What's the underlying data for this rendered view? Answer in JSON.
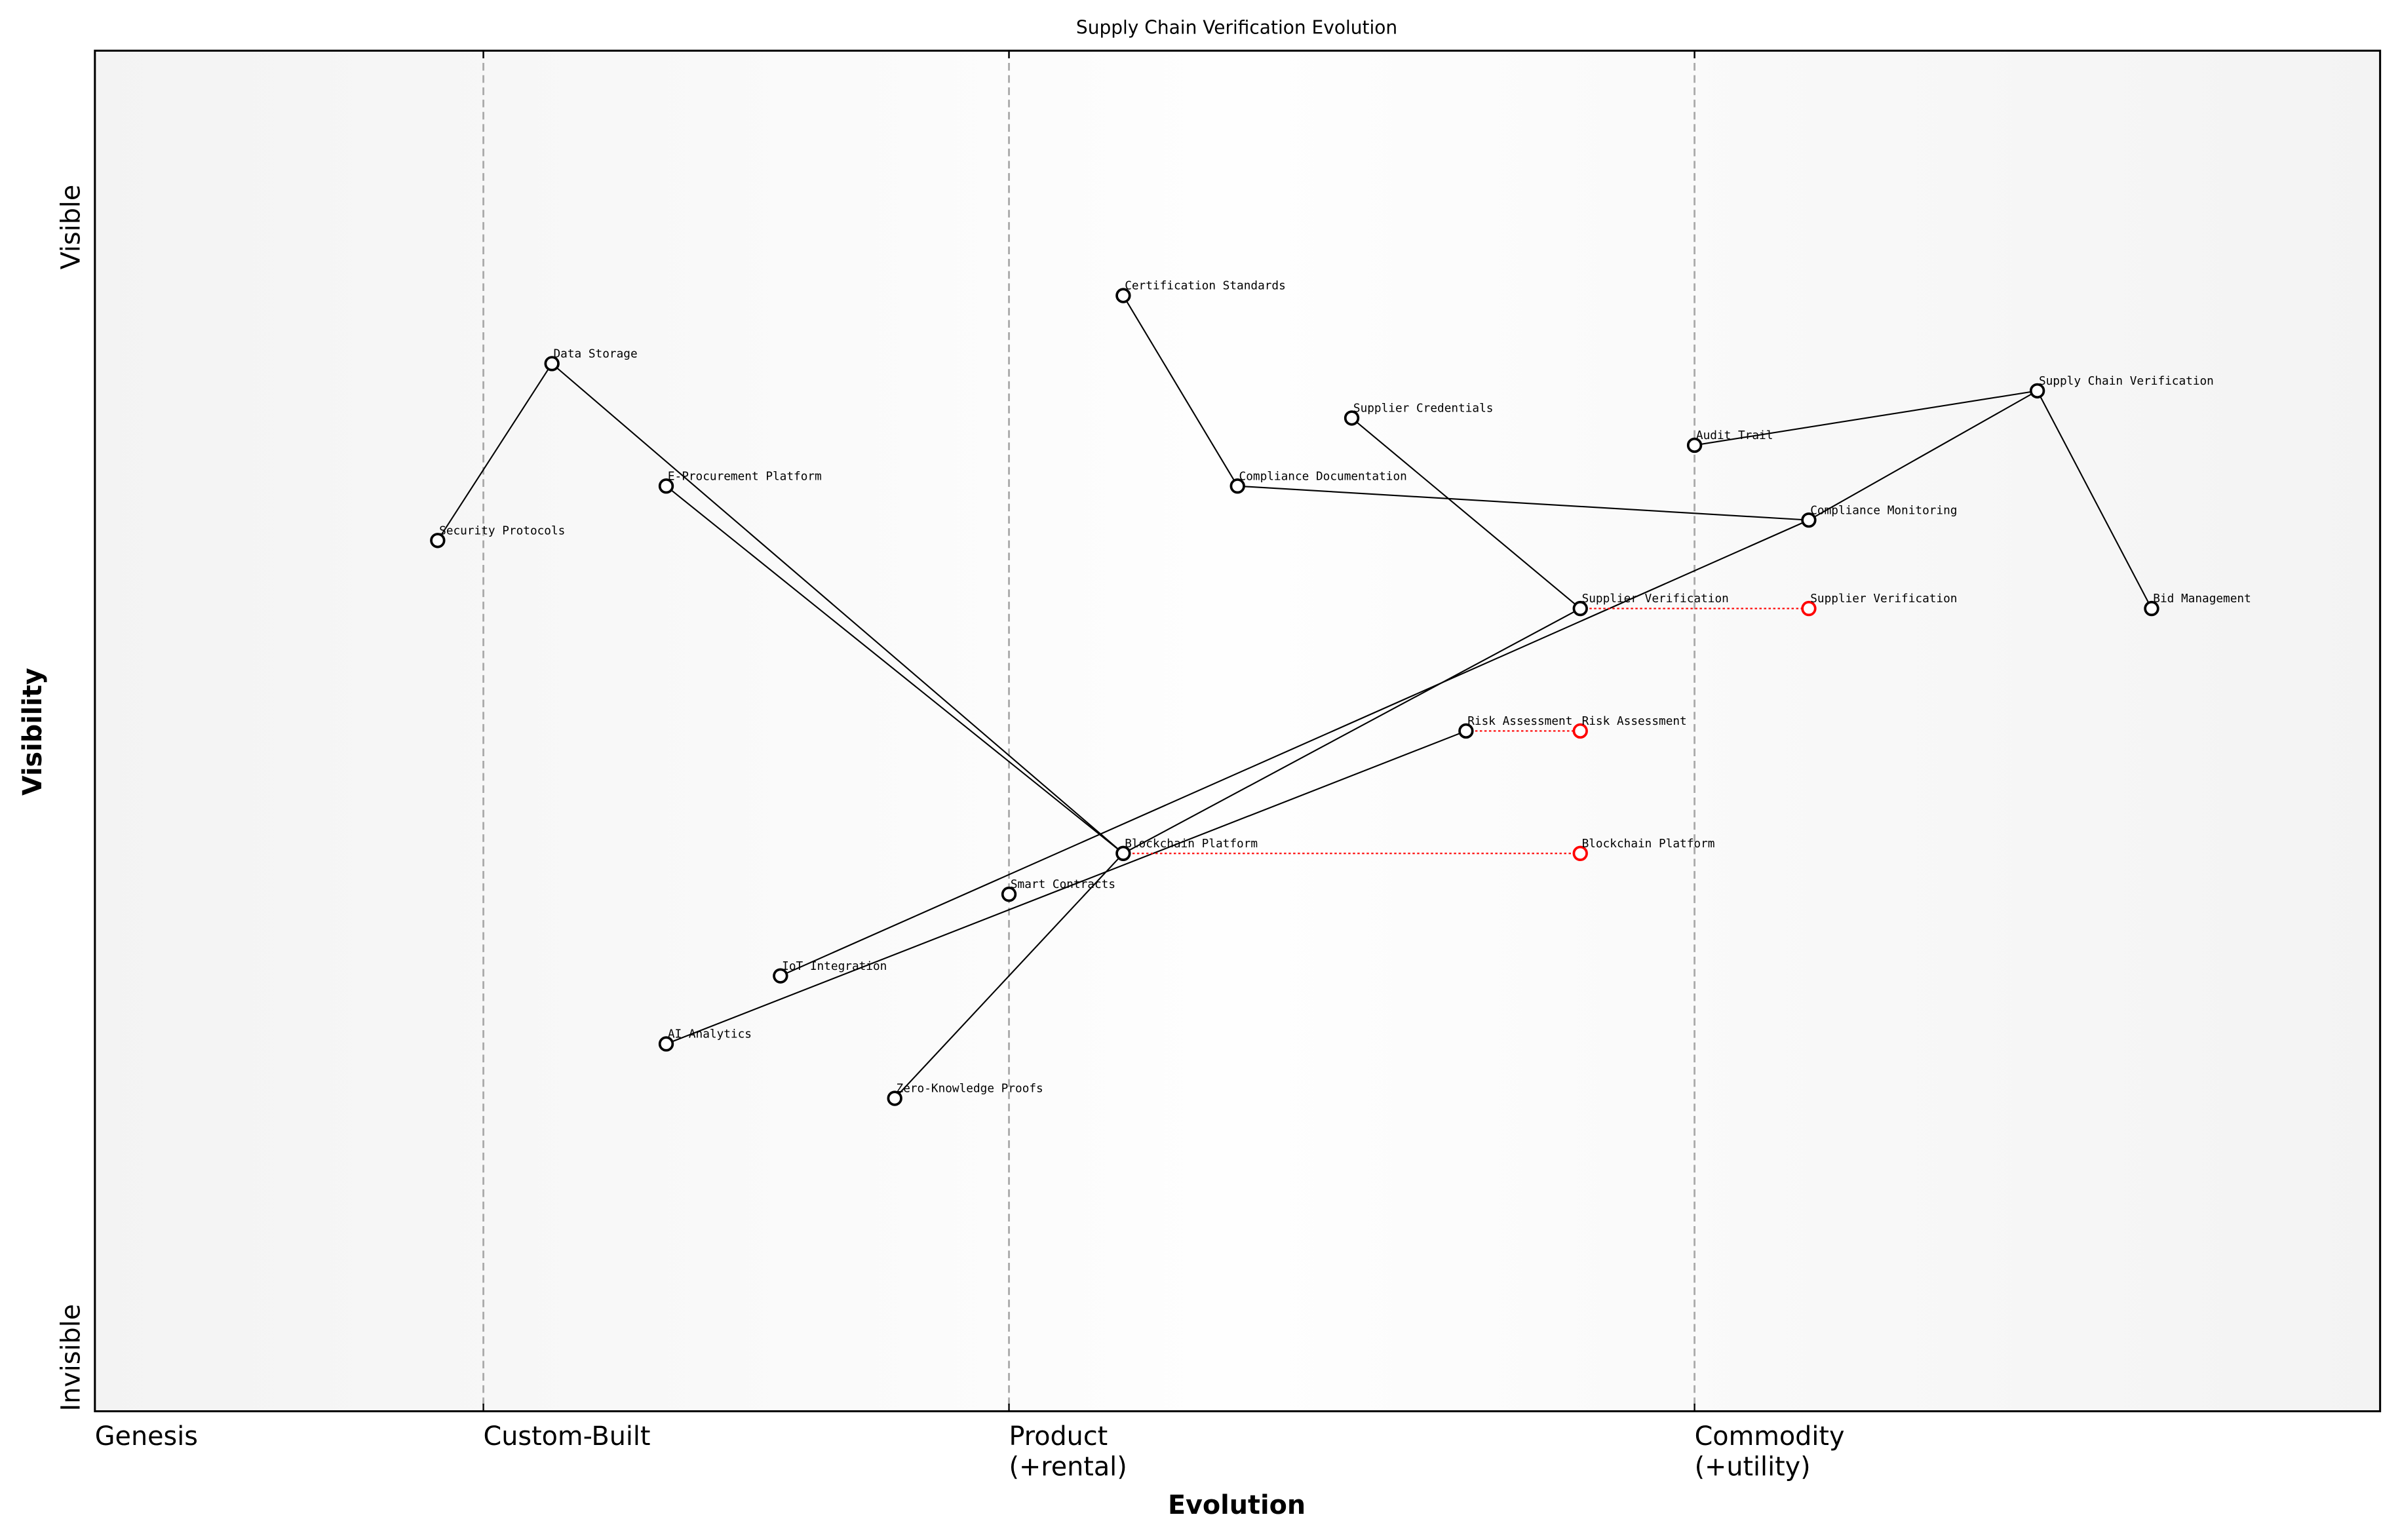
{
  "chart_data": {
    "type": "wardley",
    "title": "Supply Chain Verification Evolution",
    "x_label": "Evolution",
    "y_label": "Visibility",
    "xlim": [
      0,
      1
    ],
    "ylim": [
      0,
      1
    ],
    "xticks": [
      {
        "value": 0,
        "label": "Genesis"
      },
      {
        "value": 0.17,
        "label": "Custom-Built"
      },
      {
        "value": 0.4,
        "label": "Product\n(+rental)"
      },
      {
        "value": 0.7,
        "label": "Commodity\n(+utility)"
      }
    ],
    "yticks": [
      {
        "value": 0,
        "label": "Invisible"
      },
      {
        "value": 1,
        "label": "Visible"
      }
    ],
    "components": [
      {
        "name": "Certification Standards",
        "x": 0.45,
        "y": 0.82
      },
      {
        "name": "Data Storage",
        "x": 0.2,
        "y": 0.77
      },
      {
        "name": "Supplier Credentials",
        "x": 0.55,
        "y": 0.73
      },
      {
        "name": "Supply Chain Verification",
        "x": 0.85,
        "y": 0.75
      },
      {
        "name": "Audit Trail",
        "x": 0.7,
        "y": 0.71
      },
      {
        "name": "E-Procurement Platform",
        "x": 0.25,
        "y": 0.68
      },
      {
        "name": "Compliance Documentation",
        "x": 0.5,
        "y": 0.68
      },
      {
        "name": "Compliance Monitoring",
        "x": 0.75,
        "y": 0.655
      },
      {
        "name": "Security Protocols",
        "x": 0.15,
        "y": 0.64
      },
      {
        "name": "Supplier Verification",
        "x": 0.65,
        "y": 0.59
      },
      {
        "name": "Bid Management",
        "x": 0.9,
        "y": 0.59
      },
      {
        "name": "Risk Assessment",
        "x": 0.6,
        "y": 0.5
      },
      {
        "name": "Blockchain Platform",
        "x": 0.45,
        "y": 0.41
      },
      {
        "name": "Smart Contracts",
        "x": 0.4,
        "y": 0.38
      },
      {
        "name": "IoT Integration",
        "x": 0.3,
        "y": 0.32
      },
      {
        "name": "AI Analytics",
        "x": 0.25,
        "y": 0.27
      },
      {
        "name": "Zero-Knowledge Proofs",
        "x": 0.35,
        "y": 0.23
      }
    ],
    "links": [
      [
        1,
        8
      ],
      [
        1,
        12
      ],
      [
        5,
        12
      ],
      [
        0,
        6
      ],
      [
        6,
        7
      ],
      [
        2,
        9
      ],
      [
        4,
        3
      ],
      [
        3,
        7
      ],
      [
        3,
        10
      ],
      [
        7,
        14
      ],
      [
        9,
        12
      ],
      [
        12,
        16
      ],
      [
        15,
        11
      ]
    ],
    "evolutions": [
      {
        "component": 9,
        "name": "Supplier Verification",
        "x": 0.75
      },
      {
        "component": 11,
        "name": "Risk Assessment",
        "x": 0.65
      },
      {
        "component": 12,
        "name": "Blockchain Platform",
        "x": 0.65
      }
    ],
    "evolution_color": "red",
    "color": "black"
  }
}
